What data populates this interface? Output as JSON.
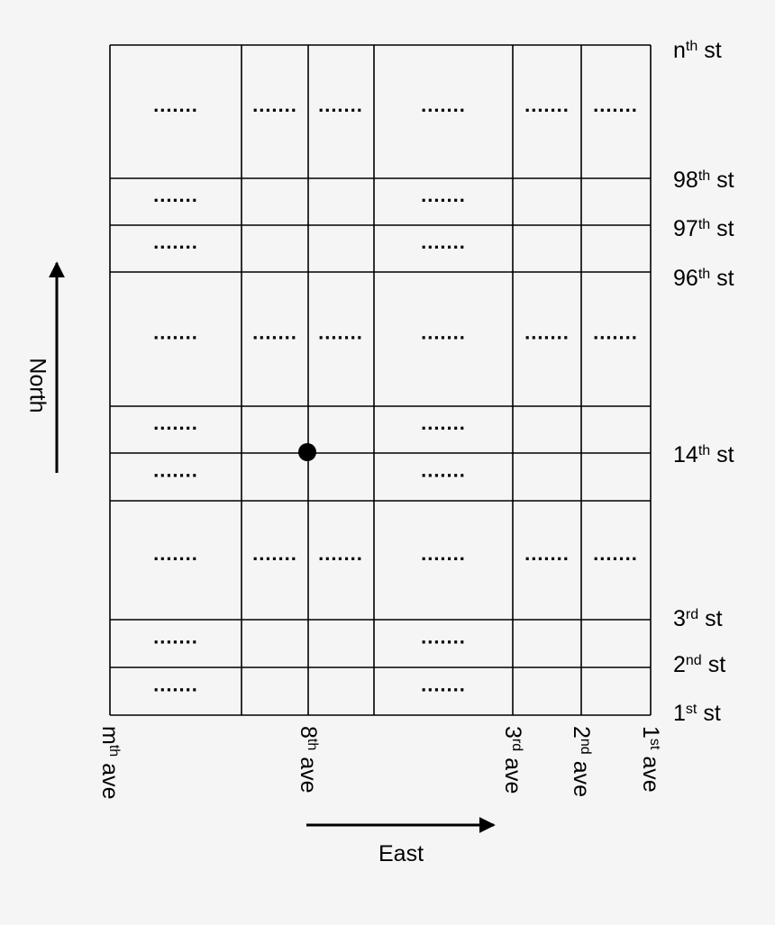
{
  "streets": [
    {
      "base": "n",
      "sup": "th",
      "suffix": "st"
    },
    {
      "base": "98",
      "sup": "th",
      "suffix": "st"
    },
    {
      "base": "97",
      "sup": "th",
      "suffix": "st"
    },
    {
      "base": "96",
      "sup": "th",
      "suffix": "st"
    },
    {
      "base": "14",
      "sup": "th",
      "suffix": "st"
    },
    {
      "base": "3",
      "sup": "rd",
      "suffix": "st"
    },
    {
      "base": "2",
      "sup": "nd",
      "suffix": "st"
    },
    {
      "base": "1",
      "sup": "st",
      "suffix": "st"
    }
  ],
  "avenues": [
    {
      "base": "m",
      "sup": "th",
      "suffix": "ave"
    },
    {
      "base": "8",
      "sup": "th",
      "suffix": "ave"
    },
    {
      "base": "3",
      "sup": "rd",
      "suffix": "ave"
    },
    {
      "base": "2",
      "sup": "nd",
      "suffix": "ave"
    },
    {
      "base": "1",
      "sup": "st",
      "suffix": "ave"
    }
  ],
  "rows": [
    {
      "cells": [
        ".......",
        ".......",
        ".......",
        ".......",
        ".......",
        "......."
      ]
    },
    {
      "cells": [
        ".......",
        "......."
      ]
    },
    {
      "cells": [
        ".......",
        "......."
      ]
    },
    {
      "cells": [
        ".......",
        ".......",
        ".......",
        ".......",
        ".......",
        "......."
      ]
    },
    {
      "cells": [
        ".......",
        "......."
      ]
    },
    {
      "cells": [
        ".......",
        "......."
      ]
    },
    {
      "cells": [
        ".......",
        ".......",
        ".......",
        ".......",
        ".......",
        "......."
      ]
    },
    {
      "cells": [
        ".......",
        "......."
      ]
    },
    {
      "cells": [
        ".......",
        "......."
      ]
    }
  ],
  "north_label": "North",
  "east_label": "East"
}
